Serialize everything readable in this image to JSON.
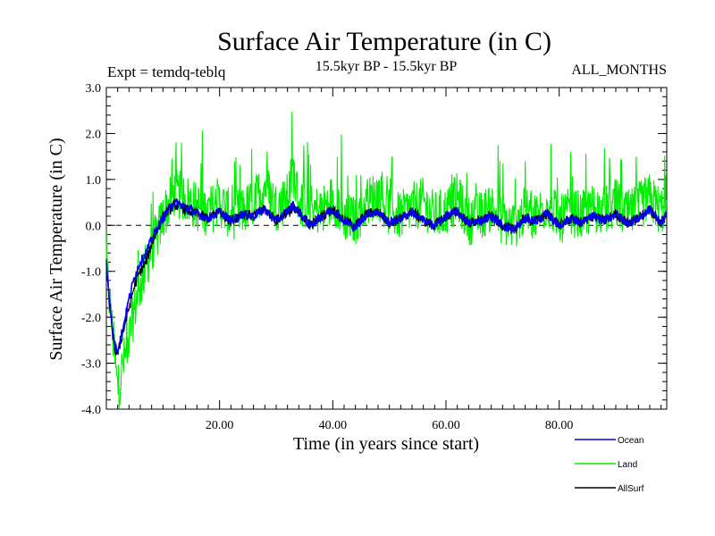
{
  "chart_data": {
    "type": "line",
    "title": "Surface Air Temperature (in C)",
    "subtitle_left": "Expt = temdq-teblq",
    "subtitle_center": "15.5kyr BP - 15.5kyr BP",
    "subtitle_right": "ALL_MONTHS",
    "xlabel": "Time (in years since start)",
    "ylabel": "Surface Air Temperature (in C)",
    "xlim": [
      0,
      99
    ],
    "ylim": [
      -4.0,
      3.0
    ],
    "xticks": [
      20,
      40,
      60,
      80
    ],
    "xtick_labels": [
      "20.00",
      "40.00",
      "60.00",
      "80.00"
    ],
    "yticks": [
      3.0,
      2.0,
      1.0,
      0.0,
      -1.0,
      -2.0,
      -3.0,
      -4.0
    ],
    "ytick_labels": [
      "3.0",
      "2.0",
      "1.0",
      "0.0",
      "-1.0",
      "-2.0",
      "-3.0",
      "-4.0"
    ],
    "reference_line": 0.0,
    "legend_position": "bottom-right",
    "series": [
      {
        "name": "Land",
        "color": "#00ee00",
        "x": [
          0,
          1,
          2,
          3,
          4,
          5,
          6,
          7,
          8,
          9,
          10,
          12,
          14,
          16,
          18,
          20,
          22,
          24,
          26,
          28,
          30,
          32,
          33,
          34,
          36,
          38,
          40,
          42,
          44,
          46,
          48,
          50,
          52,
          54,
          56,
          58,
          60,
          62,
          64,
          66,
          68,
          70,
          72,
          74,
          76,
          78,
          80,
          82,
          84,
          86,
          88,
          90,
          92,
          94,
          96,
          98,
          99
        ],
        "values": [
          -0.9,
          -2.2,
          -3.6,
          -3.0,
          -2.5,
          -1.8,
          -1.3,
          -0.9,
          -0.5,
          -0.2,
          0.2,
          0.7,
          0.6,
          0.4,
          0.3,
          0.5,
          0.2,
          0.3,
          0.5,
          0.9,
          0.4,
          0.6,
          1.2,
          0.5,
          0.4,
          0.3,
          0.6,
          0.2,
          0.1,
          0.5,
          0.7,
          0.3,
          0.2,
          0.4,
          0.5,
          0.2,
          0.3,
          0.6,
          0.1,
          0.2,
          0.4,
          0.1,
          0.0,
          0.3,
          0.2,
          0.5,
          0.1,
          0.3,
          0.2,
          0.4,
          0.3,
          0.5,
          0.2,
          0.4,
          0.6,
          0.3,
          0.5
        ]
      },
      {
        "name": "AllSurf",
        "color": "#000000",
        "x": [
          0,
          0.5,
          1,
          1.5,
          2,
          3,
          4,
          5,
          6,
          7,
          8,
          9,
          10,
          12,
          14,
          16,
          18,
          20,
          22,
          24,
          26,
          28,
          30,
          32,
          34,
          36,
          38,
          40,
          42,
          44,
          46,
          48,
          50,
          52,
          54,
          56,
          58,
          60,
          62,
          64,
          66,
          68,
          70,
          72,
          74,
          76,
          78,
          80,
          82,
          84,
          86,
          88,
          90,
          92,
          94,
          96,
          98,
          99
        ],
        "values": [
          -0.85,
          -1.6,
          -2.3,
          -2.7,
          -2.8,
          -2.3,
          -1.8,
          -1.3,
          -1.0,
          -0.8,
          -0.4,
          -0.1,
          0.2,
          0.45,
          0.35,
          0.25,
          0.15,
          0.3,
          0.1,
          0.25,
          0.2,
          0.35,
          0.1,
          0.3,
          0.3,
          0.0,
          0.2,
          0.35,
          0.1,
          0.0,
          0.25,
          0.3,
          0.05,
          0.15,
          0.3,
          0.1,
          0.0,
          0.2,
          0.3,
          0.05,
          0.1,
          0.2,
          0.0,
          -0.1,
          0.15,
          0.1,
          0.25,
          0.0,
          0.15,
          0.05,
          0.2,
          0.1,
          0.25,
          0.05,
          0.15,
          0.35,
          0.05,
          0.25
        ]
      },
      {
        "name": "Ocean",
        "color": "#0000ee",
        "x": [
          0,
          0.5,
          1,
          1.5,
          2,
          3,
          4,
          5,
          6,
          7,
          8,
          9,
          10,
          11,
          12,
          14,
          16,
          18,
          20,
          22,
          24,
          26,
          28,
          30,
          32,
          33,
          34,
          36,
          38,
          40,
          42,
          44,
          46,
          48,
          50,
          52,
          54,
          56,
          58,
          60,
          62,
          64,
          66,
          68,
          70,
          72,
          74,
          76,
          78,
          80,
          82,
          84,
          86,
          88,
          90,
          92,
          94,
          96,
          98,
          99
        ],
        "values": [
          -0.8,
          -1.5,
          -2.2,
          -2.6,
          -2.7,
          -2.2,
          -1.6,
          -1.1,
          -0.8,
          -0.6,
          -0.3,
          -0.05,
          0.15,
          0.35,
          0.5,
          0.4,
          0.25,
          0.15,
          0.3,
          0.1,
          0.25,
          0.2,
          0.35,
          0.1,
          0.3,
          0.45,
          0.3,
          0.0,
          0.2,
          0.35,
          0.1,
          -0.05,
          0.25,
          0.3,
          0.05,
          0.15,
          0.3,
          0.1,
          0.0,
          0.2,
          0.3,
          0.05,
          0.1,
          0.2,
          0.0,
          -0.1,
          0.15,
          0.1,
          0.25,
          0.0,
          0.15,
          0.05,
          0.2,
          0.1,
          0.25,
          0.05,
          0.15,
          0.35,
          0.05,
          0.25
        ]
      }
    ]
  }
}
